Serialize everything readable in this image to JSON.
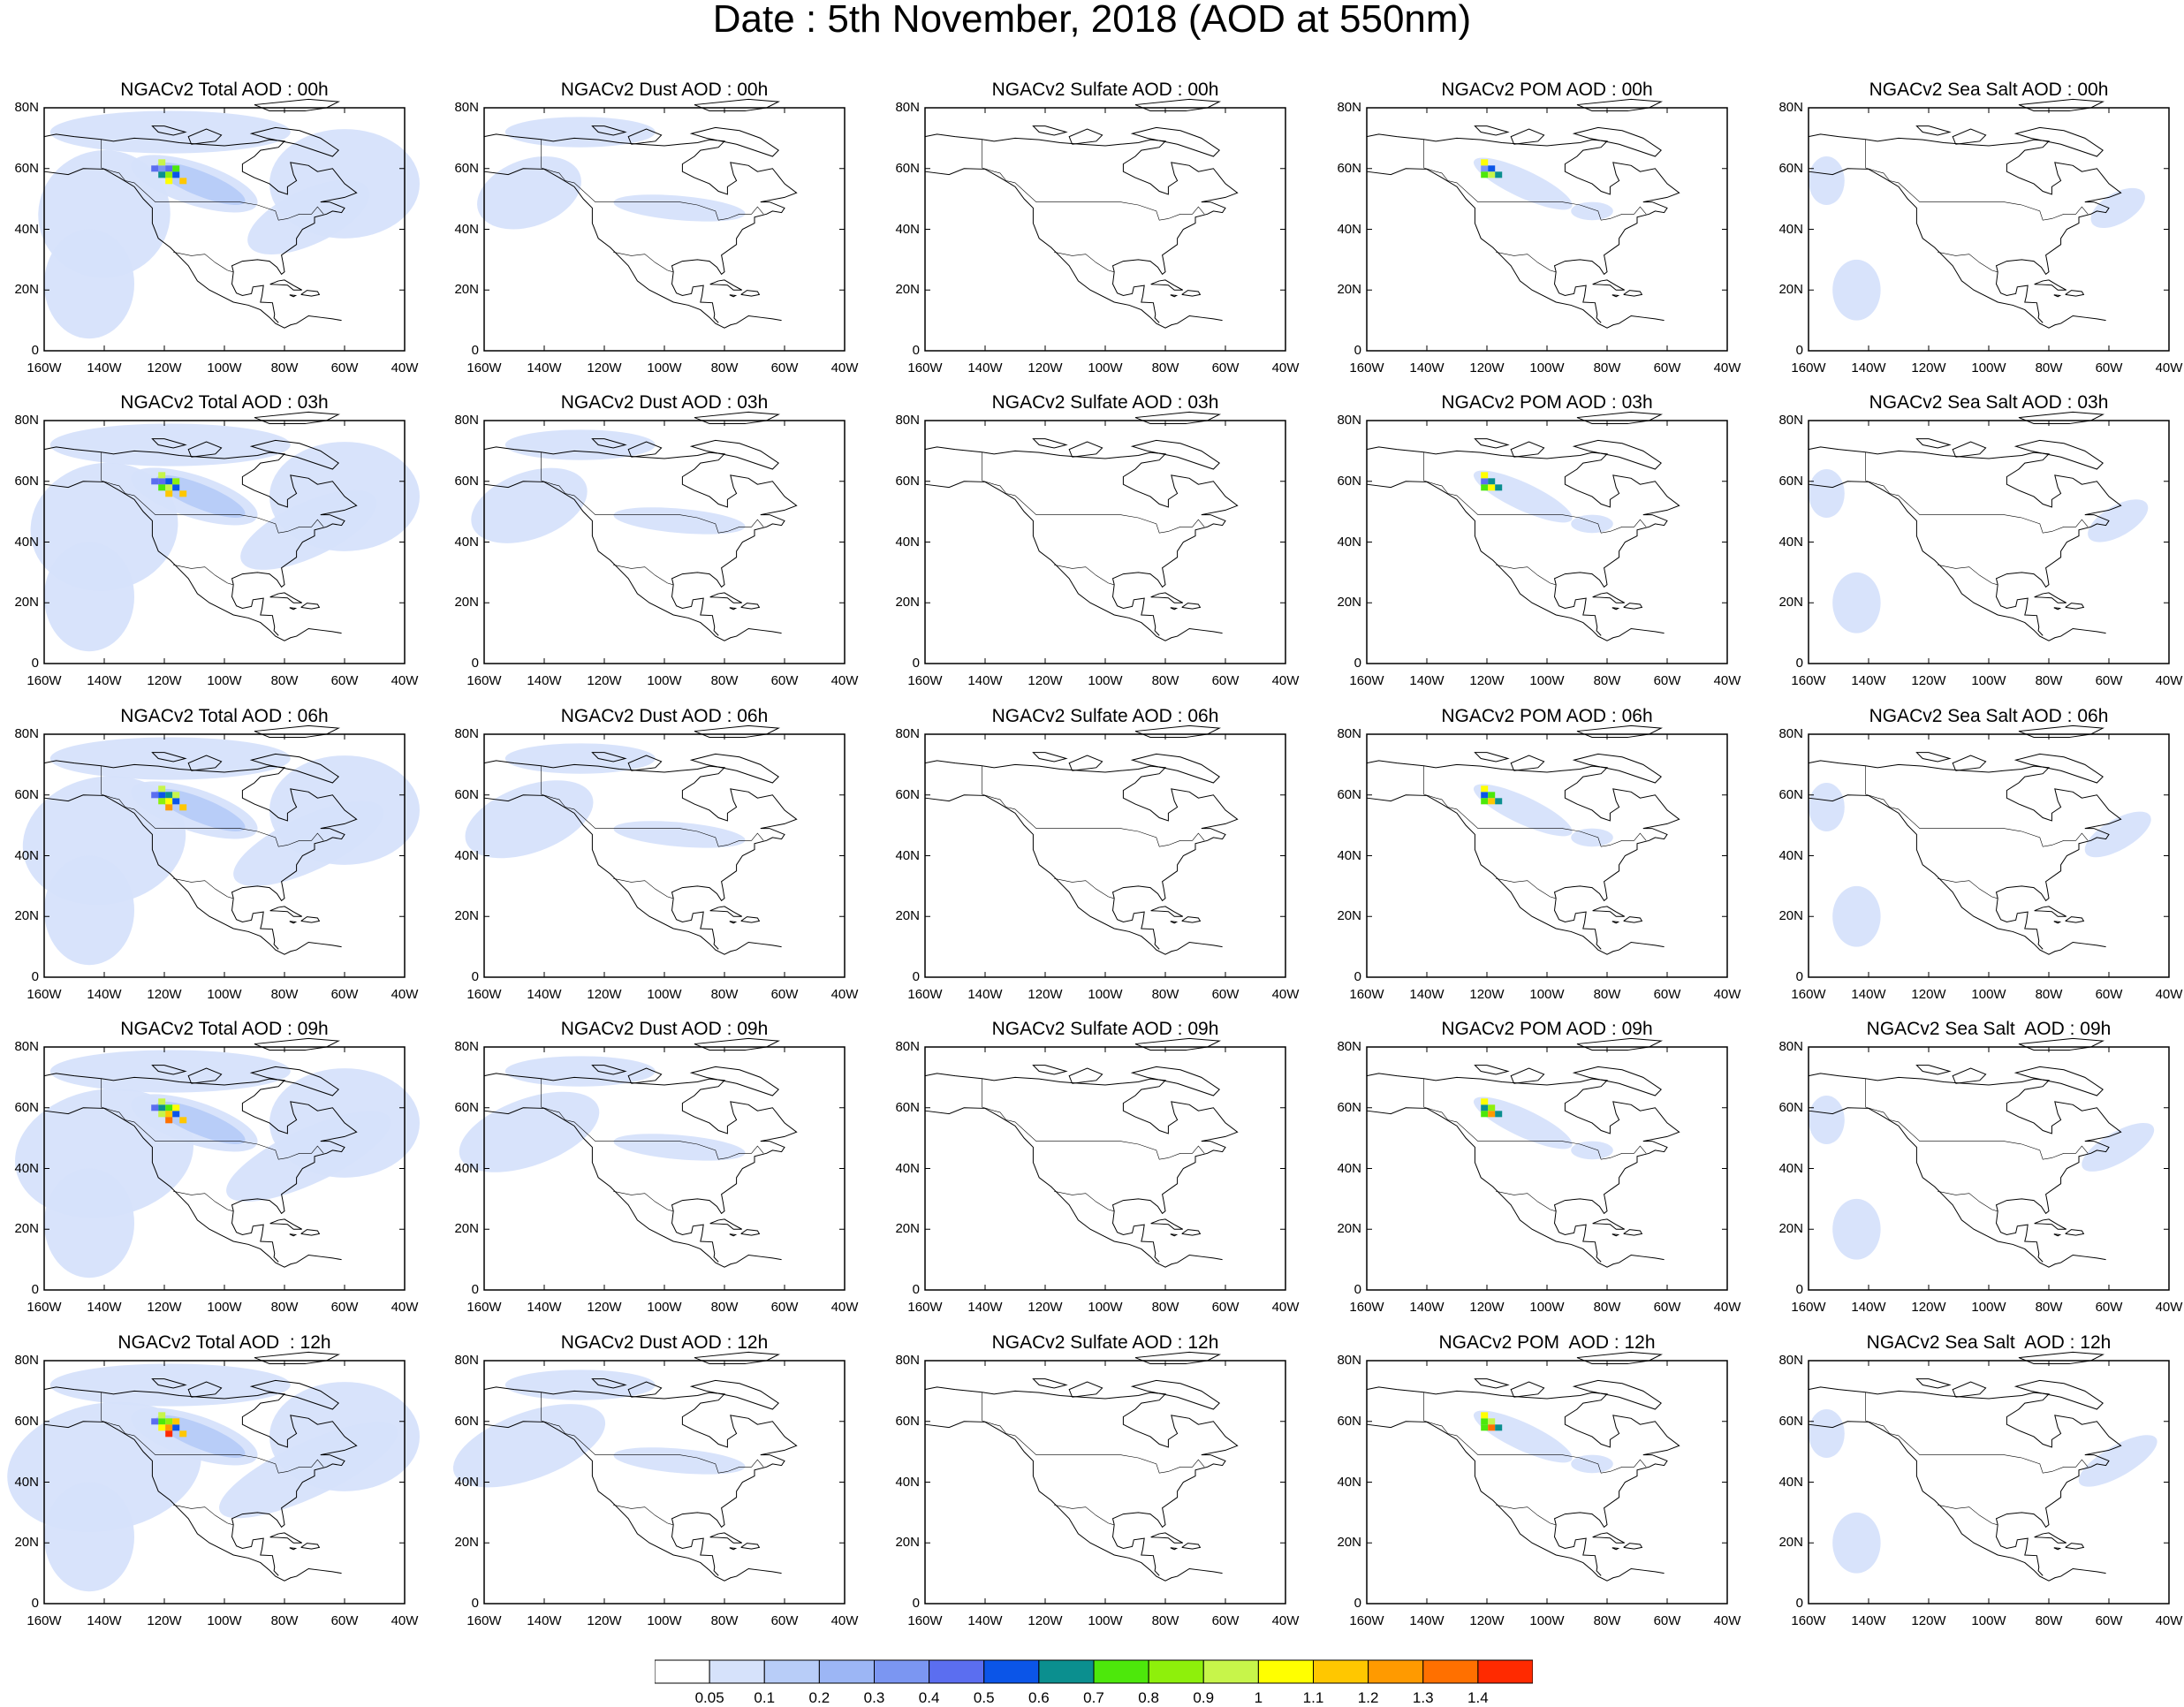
{
  "title": "Date : 5th November, 2018 (AOD at 550nm)",
  "rows": [
    {
      "time": "00h",
      "panels": [
        {
          "title": "NGACv2 Total AOD : 00h",
          "species": "total"
        },
        {
          "title": "NGACv2 Dust AOD : 00h",
          "species": "dust"
        },
        {
          "title": "NGACv2 Sulfate AOD : 00h",
          "species": "sulfate"
        },
        {
          "title": "NGACv2 POM AOD : 00h",
          "species": "pom"
        },
        {
          "title": "NGACv2 Sea Salt AOD : 00h",
          "species": "seasalt"
        }
      ]
    },
    {
      "time": "03h",
      "panels": [
        {
          "title": "NGACv2 Total AOD : 03h",
          "species": "total"
        },
        {
          "title": "NGACv2 Dust AOD : 03h",
          "species": "dust"
        },
        {
          "title": "NGACv2 Sulfate AOD : 03h",
          "species": "sulfate"
        },
        {
          "title": "NGACv2 POM AOD : 03h",
          "species": "pom"
        },
        {
          "title": "NGACv2 Sea Salt AOD : 03h",
          "species": "seasalt"
        }
      ]
    },
    {
      "time": "06h",
      "panels": [
        {
          "title": "NGACv2 Total AOD : 06h",
          "species": "total"
        },
        {
          "title": "NGACv2 Dust AOD : 06h",
          "species": "dust"
        },
        {
          "title": "NGACv2 Sulfate AOD : 06h",
          "species": "sulfate"
        },
        {
          "title": "NGACv2 POM AOD : 06h",
          "species": "pom"
        },
        {
          "title": "NGACv2 Sea Salt AOD : 06h",
          "species": "seasalt"
        }
      ]
    },
    {
      "time": "09h",
      "panels": [
        {
          "title": "NGACv2 Total AOD : 09h",
          "species": "total"
        },
        {
          "title": "NGACv2 Dust AOD : 09h",
          "species": "dust"
        },
        {
          "title": "NGACv2 Sulfate AOD : 09h",
          "species": "sulfate"
        },
        {
          "title": "NGACv2 POM AOD : 09h",
          "species": "pom"
        },
        {
          "title": "NGACv2 Sea Salt  AOD : 09h",
          "species": "seasalt"
        }
      ]
    },
    {
      "time": "12h",
      "panels": [
        {
          "title": "NGACv2 Total AOD  : 12h",
          "species": "total"
        },
        {
          "title": "NGACv2 Dust AOD : 12h",
          "species": "dust"
        },
        {
          "title": "NGACv2 Sulfate AOD : 12h",
          "species": "sulfate"
        },
        {
          "title": "NGACv2 POM  AOD : 12h",
          "species": "pom"
        },
        {
          "title": "NGACv2 Sea Salt  AOD : 12h",
          "species": "seasalt"
        }
      ]
    }
  ],
  "lat_ticks": [
    "80N",
    "60N",
    "40N",
    "20N",
    "0"
  ],
  "lon_ticks": [
    "160W",
    "140W",
    "120W",
    "100W",
    "80W",
    "60W",
    "40W"
  ],
  "map_extent": {
    "lon": [
      -160,
      -40
    ],
    "lat": [
      0,
      80
    ]
  },
  "colorbar": {
    "labels": [
      "0.05",
      "0.1",
      "0.2",
      "0.3",
      "0.4",
      "0.5",
      "0.6",
      "0.7",
      "0.8",
      "0.9",
      "1",
      "1.1",
      "1.2",
      "1.3",
      "1.4"
    ],
    "colors": [
      "#ffffff",
      "#d6e2fb",
      "#b8cdf8",
      "#9cb6f5",
      "#7b96f2",
      "#5b6ef0",
      "#0b55e8",
      "#0b8f8f",
      "#4de80b",
      "#8ef00b",
      "#c7f54a",
      "#ffff00",
      "#ffc700",
      "#ff9a00",
      "#ff7000",
      "#ff2a00"
    ]
  }
}
